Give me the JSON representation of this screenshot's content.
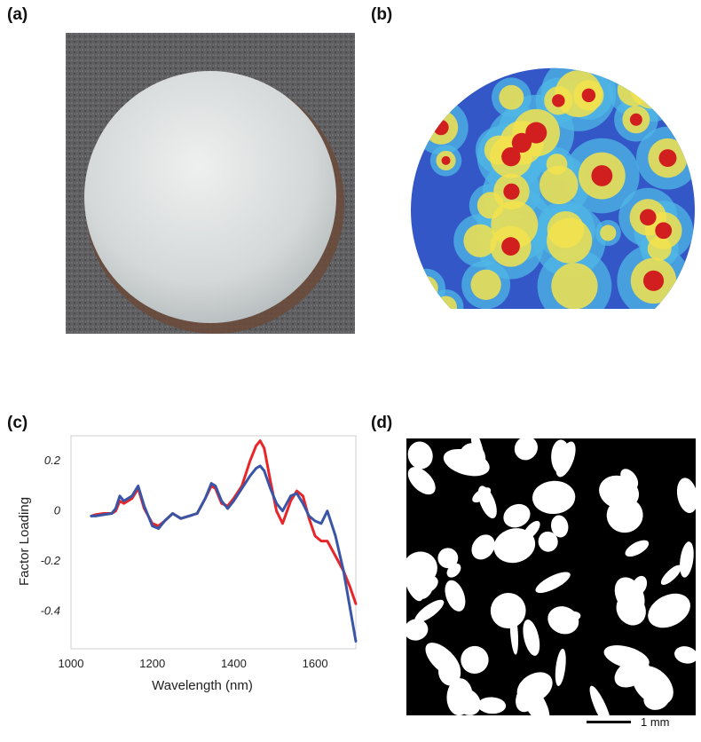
{
  "panels": {
    "a": {
      "label": "(a)"
    },
    "b": {
      "label": "(b)"
    },
    "c": {
      "label": "(c)"
    },
    "d": {
      "label": "(d)",
      "scalebar_label": "1 mm"
    }
  },
  "colors": {
    "series_red": "#e8262a",
    "series_blue": "#3a55a6",
    "heat_low": "#3457c8",
    "heat_mid": "#4fb7e6",
    "heat_hi": "#f3e24c",
    "heat_max": "#d11f1f"
  },
  "chart_data": {
    "type": "line",
    "xlabel": "Wavelength (nm)",
    "ylabel": "Factor Loading",
    "xlim": [
      1000,
      1700
    ],
    "ylim": [
      -0.55,
      0.3
    ],
    "x_ticks": [
      1000,
      1200,
      1400,
      1600
    ],
    "y_ticks": [
      0.2,
      0,
      -0.2,
      -0.4
    ],
    "y_tick_labels": [
      "0.2",
      "0",
      "-0.2",
      "-0.4"
    ],
    "grid": false,
    "series": [
      {
        "color": "#e8262a",
        "x": [
          1050,
          1060,
          1080,
          1100,
          1110,
          1120,
          1130,
          1150,
          1165,
          1180,
          1200,
          1215,
          1230,
          1250,
          1270,
          1290,
          1310,
          1330,
          1345,
          1355,
          1370,
          1385,
          1400,
          1420,
          1440,
          1455,
          1465,
          1475,
          1490,
          1505,
          1520,
          1540,
          1555,
          1570,
          1585,
          1600,
          1615,
          1630,
          1650,
          1670,
          1685,
          1700
        ],
        "y": [
          -0.02,
          -0.015,
          -0.01,
          -0.01,
          0.0,
          0.04,
          0.03,
          0.05,
          0.09,
          0.01,
          -0.05,
          -0.06,
          -0.04,
          -0.01,
          -0.03,
          -0.02,
          -0.01,
          0.05,
          0.1,
          0.09,
          0.03,
          0.02,
          0.05,
          0.1,
          0.2,
          0.26,
          0.28,
          0.25,
          0.12,
          0.0,
          -0.05,
          0.04,
          0.08,
          0.06,
          -0.03,
          -0.1,
          -0.12,
          -0.12,
          -0.18,
          -0.24,
          -0.3,
          -0.37
        ]
      },
      {
        "color": "#3a55a6",
        "x": [
          1050,
          1060,
          1080,
          1100,
          1110,
          1120,
          1130,
          1150,
          1165,
          1180,
          1200,
          1215,
          1230,
          1250,
          1270,
          1290,
          1310,
          1330,
          1345,
          1355,
          1370,
          1385,
          1400,
          1420,
          1440,
          1455,
          1465,
          1475,
          1490,
          1505,
          1520,
          1540,
          1555,
          1570,
          1585,
          1600,
          1615,
          1630,
          1650,
          1670,
          1685,
          1700
        ],
        "y": [
          -0.02,
          -0.02,
          -0.015,
          -0.01,
          0.01,
          0.06,
          0.04,
          0.06,
          0.1,
          0.02,
          -0.06,
          -0.07,
          -0.04,
          -0.01,
          -0.03,
          -0.02,
          -0.01,
          0.05,
          0.11,
          0.1,
          0.04,
          0.01,
          0.04,
          0.09,
          0.14,
          0.17,
          0.18,
          0.16,
          0.09,
          0.03,
          0.0,
          0.06,
          0.07,
          0.03,
          -0.02,
          -0.04,
          -0.05,
          0.0,
          -0.1,
          -0.24,
          -0.38,
          -0.52
        ]
      }
    ]
  }
}
